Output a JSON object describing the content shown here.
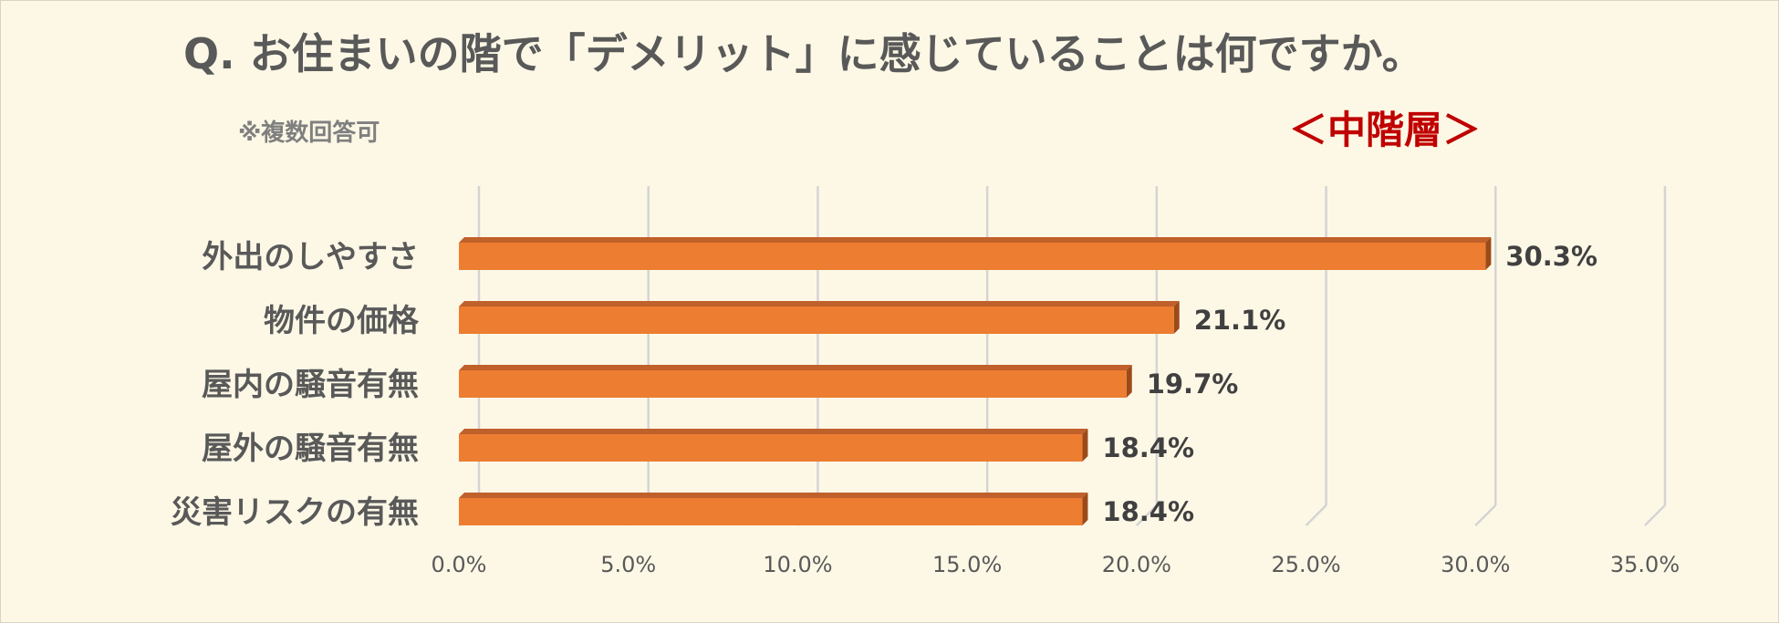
{
  "header": {
    "title": "Q. お住まいの階で「デメリット」に感じていることは何ですか。",
    "subtitle": "※複数回答可",
    "section_label": "＜中階層＞"
  },
  "colors": {
    "background": "#fdf8e6",
    "bar_front": "#ed7d31",
    "bar_top": "#c0602a",
    "bar_side": "#9c4a1a",
    "gridline": "#d4d4d4",
    "section_label": "#c00000"
  },
  "chart_data": {
    "type": "bar",
    "orientation": "horizontal",
    "style": "3d",
    "categories": [
      "外出のしやすさ",
      "物件の価格",
      "屋内の騒音有無",
      "屋外の騒音有無",
      "災害リスクの有無"
    ],
    "values": [
      30.3,
      21.1,
      19.7,
      18.4,
      18.4
    ],
    "data_labels": [
      "30.3%",
      "21.1%",
      "19.7%",
      "18.4%",
      "18.4%"
    ],
    "x_ticks": [
      "0.0%",
      "5.0%",
      "10.0%",
      "15.0%",
      "20.0%",
      "25.0%",
      "30.0%",
      "35.0%"
    ],
    "xlim": [
      0,
      35
    ],
    "grid": true,
    "legend": "none"
  }
}
